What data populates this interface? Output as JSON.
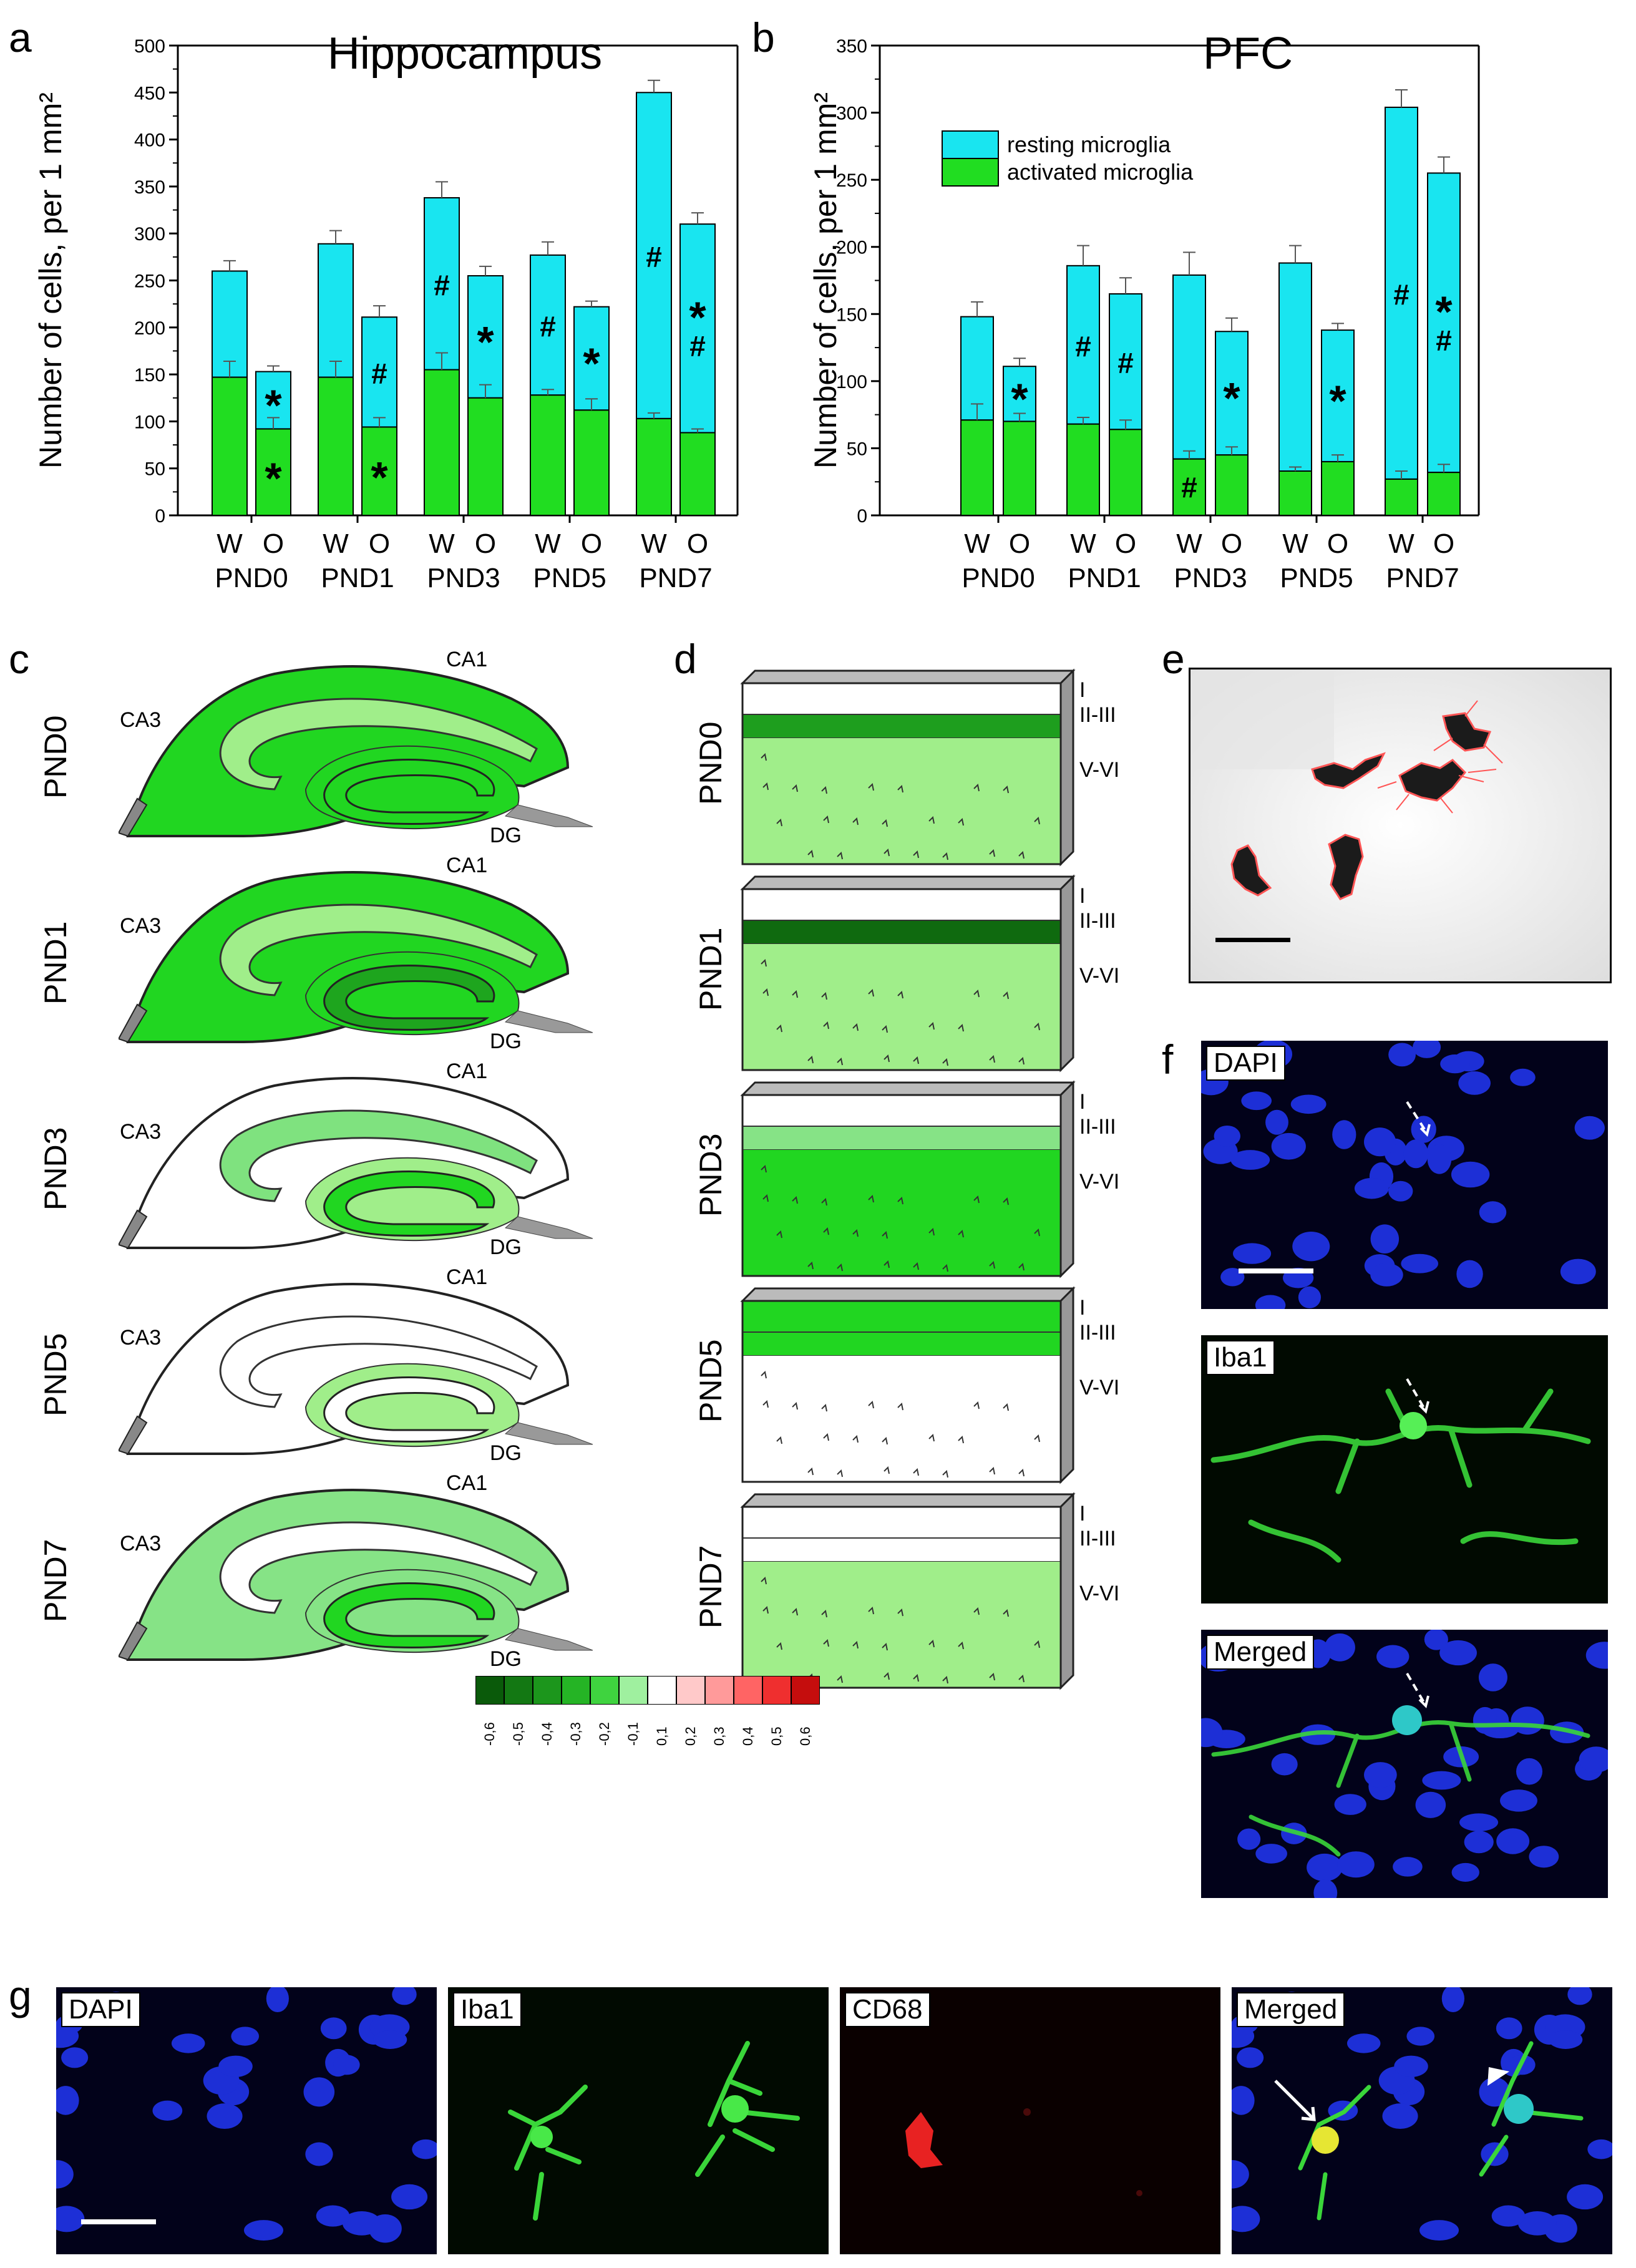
{
  "panels": {
    "a": "a",
    "b": "b",
    "c": "c",
    "d": "d",
    "e": "e",
    "f": "f",
    "g": "g"
  },
  "colors": {
    "resting": "#19e5f0",
    "activated": "#21dd21"
  },
  "chart_data": [
    {
      "type": "bar",
      "title": "Hippocampus",
      "ylabel": "Number of cells, per 1 mm²",
      "ylim": [
        0,
        500
      ],
      "yticks": [
        0,
        50,
        100,
        150,
        200,
        250,
        300,
        350,
        400,
        450,
        500
      ],
      "groups": [
        "PND0",
        "PND1",
        "PND3",
        "PND5",
        "PND7"
      ],
      "bars": [
        "W",
        "O"
      ],
      "series": [
        {
          "name": "activated microglia",
          "values": [
            [
              147,
              92
            ],
            [
              147,
              94
            ],
            [
              155,
              125
            ],
            [
              128,
              112
            ],
            [
              103,
              88
            ]
          ]
        },
        {
          "name": "resting microglia",
          "values": [
            [
              113,
              61
            ],
            [
              142,
              117
            ],
            [
              183,
              130
            ],
            [
              149,
              110
            ],
            [
              347,
              222
            ]
          ]
        }
      ],
      "total_err": [
        [
          11,
          6
        ],
        [
          14,
          12
        ],
        [
          17,
          10
        ],
        [
          14,
          6
        ],
        [
          13,
          12
        ]
      ],
      "activated_err": [
        [
          17,
          12
        ],
        [
          17,
          10
        ],
        [
          18,
          14
        ],
        [
          6,
          12
        ],
        [
          6,
          4
        ]
      ],
      "marks_resting": [
        [
          "",
          "*"
        ],
        [
          "",
          "#"
        ],
        [
          "#",
          "*"
        ],
        [
          "#",
          "*"
        ],
        [
          "#",
          "*#"
        ]
      ],
      "marks_activated": [
        [
          "",
          "*"
        ],
        [
          "",
          "*"
        ],
        [
          "",
          ""
        ],
        [
          "",
          ""
        ],
        [
          "",
          ""
        ]
      ]
    },
    {
      "type": "bar",
      "title": "PFC",
      "ylabel": "Number of cells, per 1 mm²",
      "ylim": [
        0,
        350
      ],
      "yticks": [
        0,
        50,
        100,
        150,
        200,
        250,
        300,
        350
      ],
      "groups": [
        "PND0",
        "PND1",
        "PND3",
        "PND5",
        "PND7"
      ],
      "bars": [
        "W",
        "O"
      ],
      "legend": [
        "resting microglia",
        "activated microglia"
      ],
      "series": [
        {
          "name": "activated microglia",
          "values": [
            [
              71,
              70
            ],
            [
              68,
              64
            ],
            [
              42,
              45
            ],
            [
              33,
              40
            ],
            [
              27,
              32
            ]
          ]
        },
        {
          "name": "resting microglia",
          "values": [
            [
              77,
              41
            ],
            [
              118,
              101
            ],
            [
              137,
              92
            ],
            [
              155,
              98
            ],
            [
              277,
              223
            ]
          ]
        }
      ],
      "total_err": [
        [
          11,
          6
        ],
        [
          15,
          12
        ],
        [
          17,
          10
        ],
        [
          13,
          5
        ],
        [
          13,
          12
        ]
      ],
      "activated_err": [
        [
          12,
          6
        ],
        [
          5,
          7
        ],
        [
          6,
          6
        ],
        [
          3,
          5
        ],
        [
          6,
          6
        ]
      ],
      "marks_resting": [
        [
          "",
          "*"
        ],
        [
          "#",
          "#"
        ],
        [
          "",
          "*"
        ],
        [
          "",
          "*"
        ],
        [
          "#",
          "*#"
        ]
      ],
      "marks_activated": [
        [
          "",
          ""
        ],
        [
          "",
          ""
        ],
        [
          "#",
          ""
        ],
        [
          "",
          ""
        ],
        [
          "",
          ""
        ]
      ]
    }
  ],
  "panel_c": {
    "rows": [
      "PND0",
      "PND1",
      "PND3",
      "PND5",
      "PND7"
    ],
    "regions": {
      "ca1": "CA1",
      "ca3": "CA3",
      "dg": "DG"
    }
  },
  "panel_d": {
    "rows": [
      "PND0",
      "PND1",
      "PND3",
      "PND5",
      "PND7"
    ],
    "layers": [
      "I",
      "II-III",
      "V-VI"
    ]
  },
  "colorbar": {
    "ticks": [
      "-0,6",
      "-0,5",
      "-0,4",
      "-0,3",
      "-0,2",
      "-0,1",
      "0,1",
      "0,2",
      "0,3",
      "0,4",
      "0,5",
      "0,6"
    ],
    "colors": [
      "#0a5a0a",
      "#137813",
      "#1c961c",
      "#25b425",
      "#3fd33f",
      "#9ff09f",
      "#ffffff",
      "#ffc9c9",
      "#ff9a9a",
      "#ff6464",
      "#ef2f2f",
      "#c50d0d"
    ]
  },
  "panel_f": {
    "labels": [
      "DAPI",
      "Iba1",
      "Merged"
    ]
  },
  "panel_g": {
    "labels": [
      "DAPI",
      "Iba1",
      "CD68",
      "Merged"
    ]
  }
}
